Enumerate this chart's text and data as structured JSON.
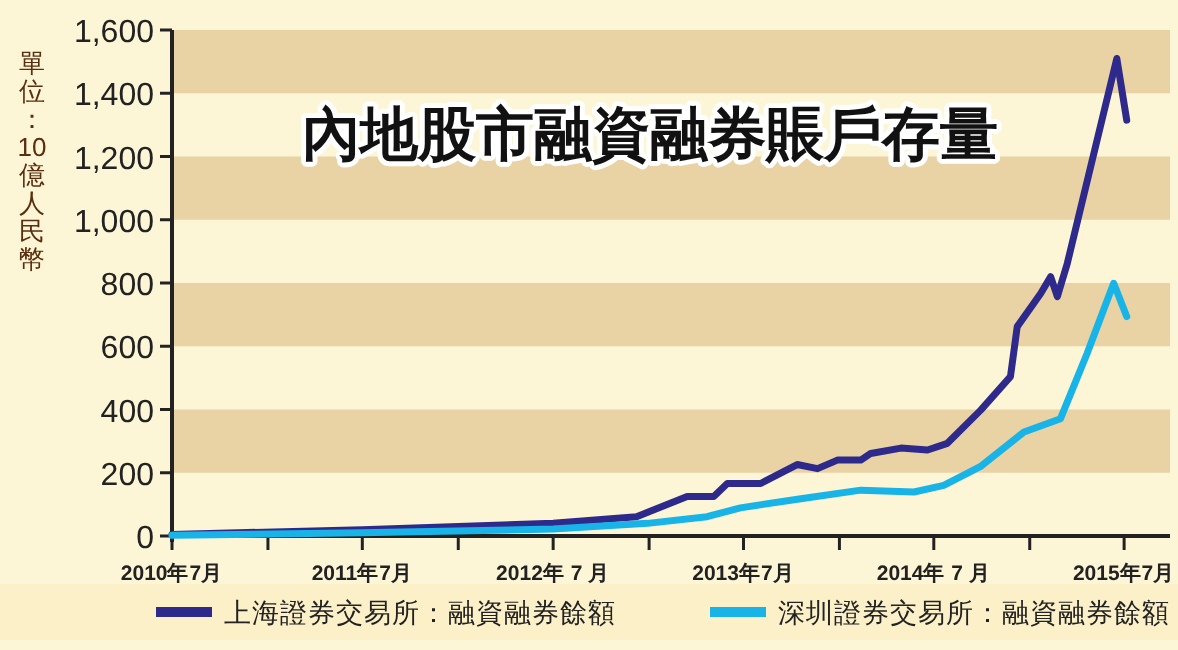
{
  "chart_data": {
    "type": "line",
    "title": "內地股市融資融券賬戶存量",
    "ylabel": "單位：10億人民幣",
    "xlim": [
      "2010-07-01",
      "2015-09-27"
    ],
    "xticks": [
      {
        "value": "2010-07-01",
        "label": "2010年7月"
      },
      {
        "value": "2011-01-01",
        "label": null
      },
      {
        "value": "2011-07-01",
        "label": "2011年7月"
      },
      {
        "value": "2012-01-01",
        "label": null
      },
      {
        "value": "2012-07-01",
        "label": "2012年 7 月"
      },
      {
        "value": "2013-01-01",
        "label": null
      },
      {
        "value": "2013-07-01",
        "label": "2013年7月"
      },
      {
        "value": "2014-01-01",
        "label": null
      },
      {
        "value": "2014-07-01",
        "label": "2014年 7 月"
      },
      {
        "value": "2015-01-01",
        "label": null
      },
      {
        "value": "2015-07-01",
        "label": "2015年7月"
      }
    ],
    "ylim": [
      0,
      1600
    ],
    "yticks": [
      0,
      200,
      400,
      600,
      800,
      {
        "value": 1000,
        "label": "1,000"
      },
      {
        "value": 1200,
        "label": "1,200"
      },
      {
        "value": 1400,
        "label": "1,400"
      },
      {
        "value": 1600,
        "label": "1,600"
      }
    ],
    "bands": [
      {
        "axis": "y",
        "from": 200,
        "to": 400,
        "color": "#e9d2a4"
      },
      {
        "axis": "y",
        "from": 600,
        "to": 800,
        "color": "#e9d2a4"
      },
      {
        "axis": "y",
        "from": 1000,
        "to": 1200,
        "color": "#e9d2a4"
      },
      {
        "axis": "y",
        "from": 1400,
        "to": 1600,
        "color": "#e9d2a4"
      }
    ],
    "legend": "bottom",
    "series": [
      {
        "name": "上海證券交易所：融資融券餘額",
        "color": "#2e2a8c",
        "x": [
          "2010-07-01",
          "2011-07-01",
          "2012-07-01",
          "2012-12-08",
          "2013-03-15",
          "2013-05-05",
          "2013-05-31",
          "2013-08-03",
          "2013-10-12",
          "2013-11-20",
          "2013-12-28",
          "2014-02-11",
          "2014-03-02",
          "2014-04-29",
          "2014-06-19",
          "2014-07-27",
          "2014-09-29",
          "2014-11-25",
          "2014-12-08",
          "2015-01-22",
          "2015-02-10",
          "2015-02-23",
          "2015-03-14",
          "2015-06-17",
          "2015-07-06"
        ],
        "values": [
          5,
          20,
          40,
          61,
          125,
          125,
          166,
          166,
          226,
          213,
          240,
          240,
          261,
          278,
          272,
          293,
          398,
          504,
          662,
          767,
          820,
          757,
          862,
          1510,
          1315
        ]
      },
      {
        "name": "深圳證券交易所：融資融券餘額",
        "color": "#18b4e8",
        "x": [
          "2010-07-01",
          "2011-07-01",
          "2012-07-01",
          "2012-12-29",
          "2013-04-22",
          "2013-06-25",
          "2013-10-19",
          "2014-02-11",
          "2014-05-24",
          "2014-07-20",
          "2014-09-28",
          "2014-12-21",
          "2015-03-01",
          "2015-04-21",
          "2015-06-11",
          "2015-07-06"
        ],
        "values": [
          2,
          10,
          22,
          40,
          61,
          89,
          118,
          145,
          139,
          160,
          219,
          329,
          371,
          577,
          799,
          694
        ]
      }
    ]
  }
}
